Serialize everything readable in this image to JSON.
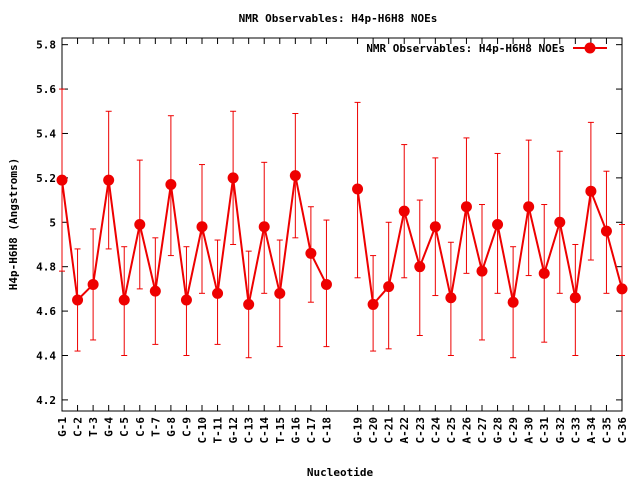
{
  "chart_data": {
    "type": "line",
    "title": "NMR Observables: H4p-H6H8 NOEs",
    "xlabel": "Nucleotide",
    "ylabel": "H4p-H6H8 (Angstroms)",
    "ylim": [
      4.15,
      5.83
    ],
    "yticks": [
      4.2,
      4.4,
      4.6,
      4.8,
      5,
      5.2,
      5.4,
      5.6,
      5.8
    ],
    "ytick_labels": [
      "4.2",
      "4.4",
      "4.6",
      "4.8",
      "5",
      "5.2",
      "5.4",
      "5.6",
      "5.8"
    ],
    "grid": false,
    "legend_position": "top-right",
    "color": "#ee0000",
    "categories": [
      "G-1",
      "C-2",
      "T-3",
      "G-4",
      "C-5",
      "C-6",
      "T-7",
      "G-8",
      "C-9",
      "C-10",
      "T-11",
      "G-12",
      "C-13",
      "C-14",
      "T-15",
      "G-16",
      "C-17",
      "C-18",
      "G-19",
      "C-20",
      "C-21",
      "A-22",
      "C-23",
      "C-24",
      "C-25",
      "A-26",
      "C-27",
      "G-28",
      "C-29",
      "A-30",
      "C-31",
      "G-32",
      "C-33",
      "A-34",
      "C-35",
      "C-36"
    ],
    "x": [
      1,
      2,
      3,
      4,
      5,
      6,
      7,
      8,
      9,
      10,
      11,
      12,
      13,
      14,
      15,
      16,
      17,
      18,
      20,
      21,
      22,
      23,
      24,
      25,
      26,
      27,
      28,
      29,
      30,
      31,
      32,
      33,
      34,
      35,
      36,
      37
    ],
    "series": [
      {
        "name": "NMR Observables: H4p-H6H8 NOEs",
        "segments": [
          [
            0,
            17
          ],
          [
            18,
            35
          ]
        ],
        "values": [
          5.19,
          4.65,
          4.72,
          5.19,
          4.65,
          4.99,
          4.69,
          5.17,
          4.65,
          4.98,
          4.68,
          5.2,
          4.63,
          4.98,
          4.68,
          5.21,
          4.86,
          4.72,
          5.15,
          4.63,
          4.71,
          5.05,
          4.8,
          4.98,
          4.66,
          5.07,
          4.78,
          4.99,
          4.64,
          5.07,
          4.77,
          5.0,
          4.66,
          5.14,
          4.96,
          4.7
        ],
        "err_low": [
          4.78,
          4.42,
          4.47,
          4.88,
          4.4,
          4.7,
          4.45,
          4.85,
          4.4,
          4.68,
          4.45,
          4.9,
          4.39,
          4.68,
          4.44,
          4.93,
          4.64,
          4.44,
          4.75,
          4.42,
          4.43,
          4.75,
          4.49,
          4.67,
          4.4,
          4.77,
          4.47,
          4.68,
          4.39,
          4.76,
          4.46,
          4.68,
          4.4,
          4.83,
          4.68,
          4.4
        ],
        "err_high": [
          5.6,
          4.88,
          4.97,
          5.5,
          4.89,
          5.28,
          4.93,
          5.48,
          4.89,
          5.26,
          4.92,
          5.5,
          4.87,
          5.27,
          4.92,
          5.49,
          5.07,
          5.01,
          5.54,
          4.85,
          5.0,
          5.35,
          5.1,
          5.29,
          4.91,
          5.38,
          5.08,
          5.31,
          4.89,
          5.37,
          5.08,
          5.32,
          4.9,
          5.45,
          5.23,
          4.99
        ]
      }
    ]
  }
}
